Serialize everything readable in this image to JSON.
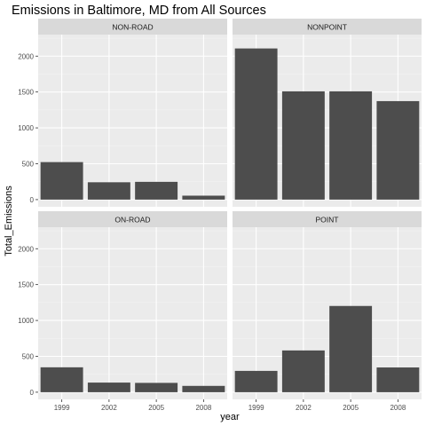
{
  "chart_data": {
    "type": "bar",
    "title": "Emissions in Baltimore, MD from All Sources",
    "xlabel": "year",
    "ylabel": "Total_Emissions",
    "categories": [
      "1999",
      "2002",
      "2005",
      "2008"
    ],
    "yticks": [
      0,
      500,
      1000,
      1500,
      2000
    ],
    "ylim": [
      -100,
      2300
    ],
    "grid": true,
    "facets": [
      {
        "name": "NON-ROAD",
        "values": [
          523,
          242,
          248,
          55
        ]
      },
      {
        "name": "NONPOINT",
        "values": [
          2107,
          1509,
          1509,
          1373
        ]
      },
      {
        "name": "ON-ROAD",
        "values": [
          347,
          134,
          130,
          88
        ]
      },
      {
        "name": "POINT",
        "values": [
          297,
          582,
          1202,
          345
        ]
      }
    ]
  },
  "colors": {
    "panel_bg": "#ebebeb",
    "grid_major": "#ffffff",
    "grid_minor": "#f4f4f4",
    "strip_bg": "#d9d9d9",
    "bar_fill": "#4d4d4d",
    "text": "#000000",
    "tick_text": "#4d4d4d"
  }
}
